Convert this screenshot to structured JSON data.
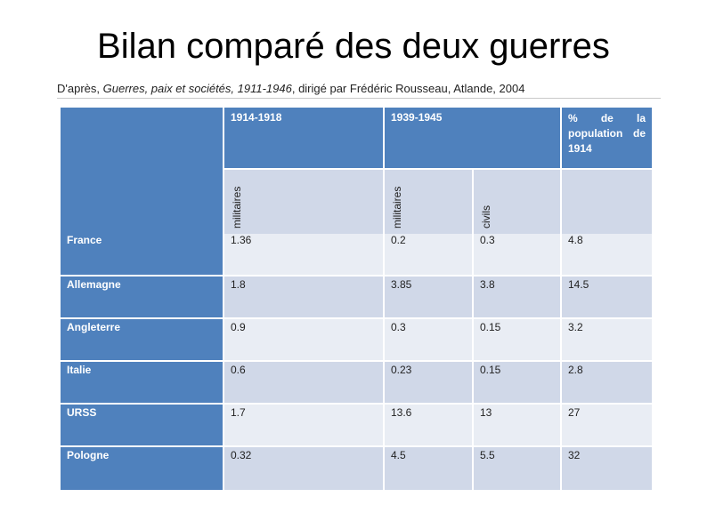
{
  "slide": {
    "title": "Bilan comparé des deux guerres"
  },
  "source": {
    "prefix": "D'après, ",
    "work_title": "Guerres, paix et sociétés, 1911-1946",
    "suffix": ", dirigé par Frédéric Rousseau, Atlande, 2004"
  },
  "table": {
    "header": {
      "col_1914": "1914-1918",
      "col_1939": "1939-1945",
      "col_pct_line1": "% de la",
      "col_pct_line2": "population de",
      "col_pct_line3": "1914"
    },
    "subheader": {
      "militaires_1914": "militaires",
      "militaires_1939": "militaires",
      "civils_1939": "civils"
    },
    "colors": {
      "header_blue": "#4f81bd",
      "band_dark": "#d0d8e8",
      "band_light": "#e9edf4"
    },
    "rows": [
      {
        "country": "France",
        "mil_1914": "1.36",
        "mil_1939": "0.2",
        "civ_1939": "0.3",
        "pct": "4.8"
      },
      {
        "country": "Allemagne",
        "mil_1914": "1.8",
        "mil_1939": "3.85",
        "civ_1939": "3.8",
        "pct": "14.5"
      },
      {
        "country": "Angleterre",
        "mil_1914": "0.9",
        "mil_1939": "0.3",
        "civ_1939": "0.15",
        "pct": "3.2"
      },
      {
        "country": "Italie",
        "mil_1914": "0.6",
        "mil_1939": "0.23",
        "civ_1939": "0.15",
        "pct": "2.8"
      },
      {
        "country": "URSS",
        "mil_1914": "1.7",
        "mil_1939": "13.6",
        "civ_1939": "13",
        "pct": "27"
      },
      {
        "country": "Pologne",
        "mil_1914": "0.32",
        "mil_1939": "4.5",
        "civ_1939": "5.5",
        "pct": "32"
      }
    ]
  }
}
